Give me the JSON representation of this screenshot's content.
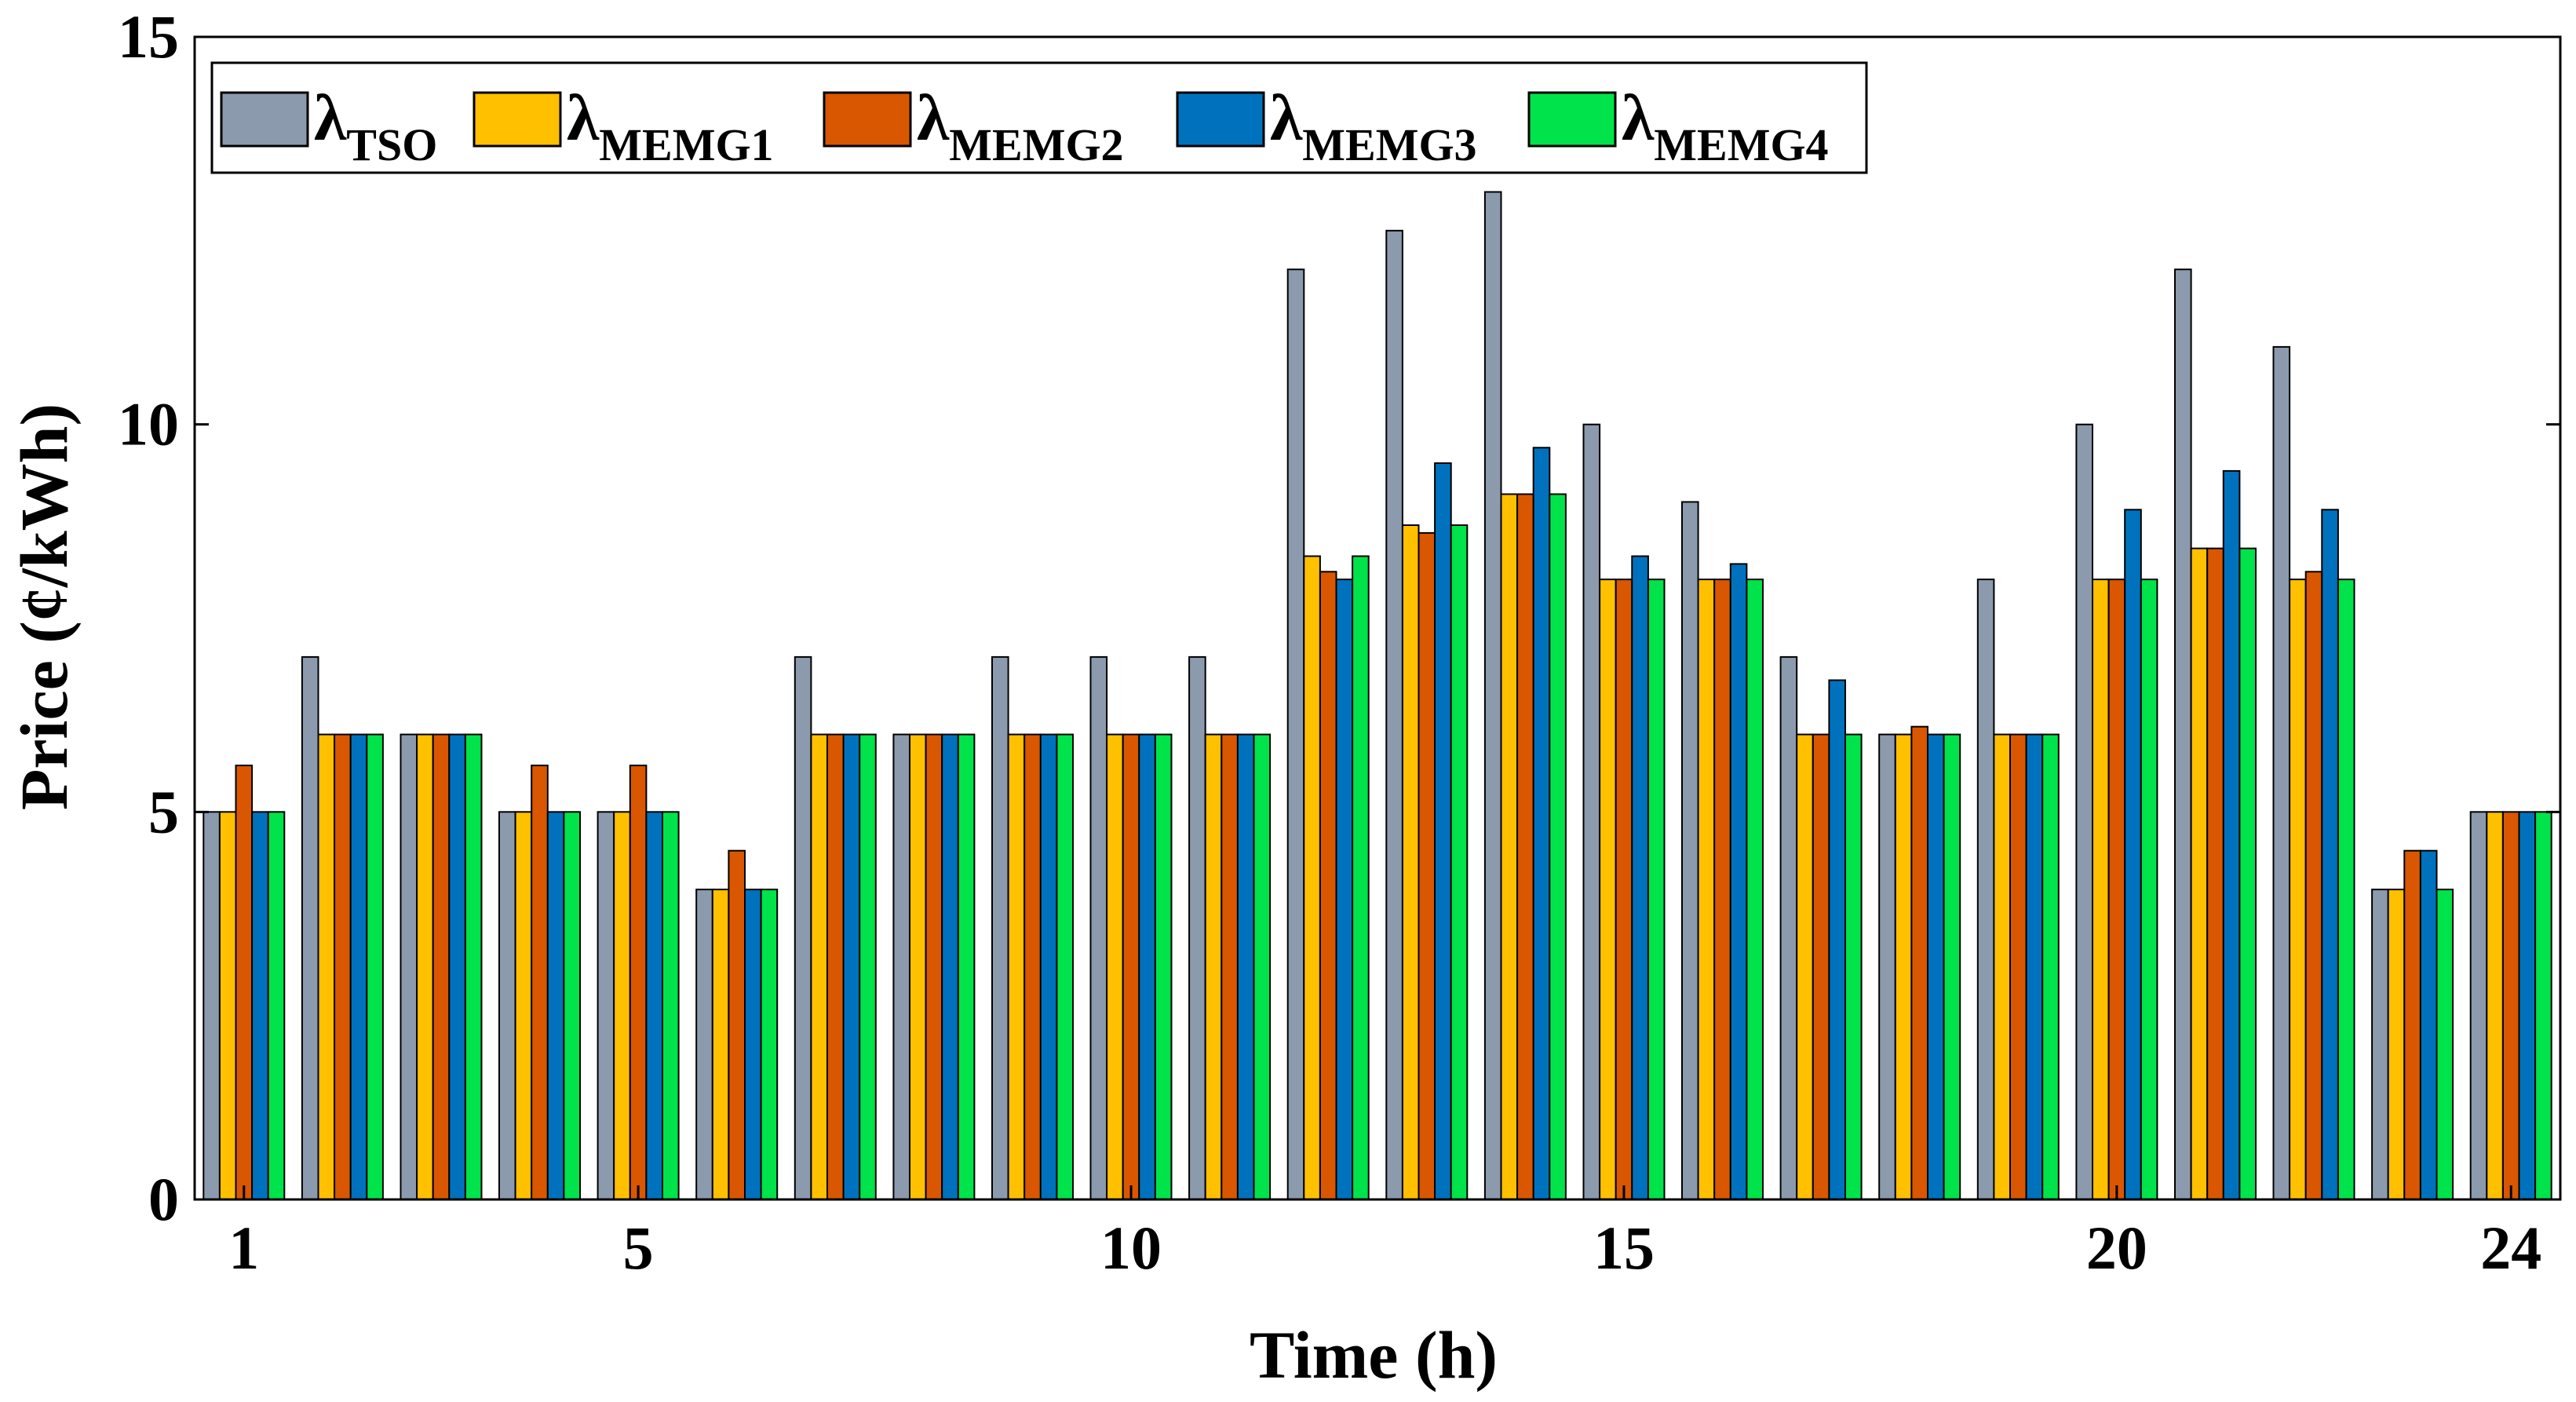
{
  "chart_data": {
    "type": "bar",
    "title": "",
    "xlabel": "Time (h)",
    "ylabel": "Price (¢/kWh)",
    "ylim": [
      0,
      15
    ],
    "yticks": [
      "0",
      "5",
      "10",
      "15"
    ],
    "xtick_labels": [
      {
        "hour": 1,
        "label": "1"
      },
      {
        "hour": 5,
        "label": "5"
      },
      {
        "hour": 10,
        "label": "10"
      },
      {
        "hour": 15,
        "label": "15"
      },
      {
        "hour": 20,
        "label": "20"
      },
      {
        "hour": 24,
        "label": "24"
      }
    ],
    "categories": [
      1,
      2,
      3,
      4,
      5,
      6,
      7,
      8,
      9,
      10,
      11,
      12,
      13,
      14,
      15,
      16,
      17,
      18,
      19,
      20,
      21,
      22,
      23,
      24
    ],
    "legend_placement": "top-left",
    "series": [
      {
        "name": "λTSO",
        "symbol": "λ",
        "subscript": "TSO",
        "color": "#8C9AAE",
        "values": [
          5,
          7,
          6,
          5,
          5,
          4,
          7,
          6,
          7,
          7,
          7,
          12,
          12.5,
          13,
          10,
          9,
          7,
          6,
          8,
          10,
          12,
          11,
          4,
          5
        ]
      },
      {
        "name": "λMEMG1",
        "symbol": "λ",
        "subscript": "MEMG1",
        "color": "#FFC000",
        "values": [
          5,
          6,
          6,
          5,
          5,
          4,
          6,
          6,
          6,
          6,
          6,
          8.3,
          8.7,
          9.1,
          8,
          8,
          6,
          6,
          6,
          8,
          8.4,
          8,
          4,
          5
        ]
      },
      {
        "name": "λMEMG2",
        "symbol": "λ",
        "subscript": "MEMG2",
        "color": "#D95700",
        "values": [
          5.6,
          6,
          6,
          5.6,
          5.6,
          4.5,
          6,
          6,
          6,
          6,
          6,
          8.1,
          8.6,
          9.1,
          8,
          8,
          6,
          6.1,
          6,
          8,
          8.4,
          8.1,
          4.5,
          5
        ]
      },
      {
        "name": "λMEMG3",
        "symbol": "λ",
        "subscript": "MEMG3",
        "color": "#0072BD",
        "values": [
          5,
          6,
          6,
          5,
          5,
          4,
          6,
          6,
          6,
          6,
          6,
          8,
          9.5,
          9.7,
          8.3,
          8.2,
          6.7,
          6,
          6,
          8.9,
          9.4,
          8.9,
          4.5,
          5
        ]
      },
      {
        "name": "λMEMG4",
        "symbol": "λ",
        "subscript": "MEMG4",
        "color": "#00E34A",
        "values": [
          5,
          6,
          6,
          5,
          5,
          4,
          6,
          6,
          6,
          6,
          6,
          8.3,
          8.7,
          9.1,
          8,
          8,
          6,
          6,
          6,
          8,
          8.4,
          8,
          4,
          5
        ]
      }
    ]
  }
}
